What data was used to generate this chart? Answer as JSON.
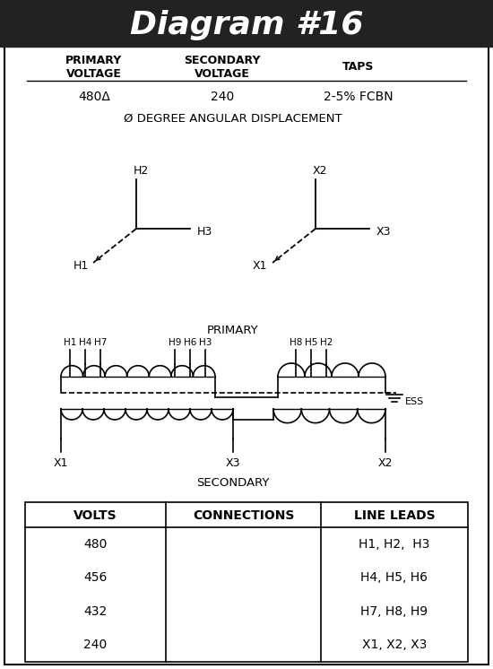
{
  "title": "Diagram #16",
  "bg_header": "#222222",
  "bg_body": "#ffffff",
  "primary_voltage": "480Δ",
  "secondary_voltage": "240",
  "taps": "2-5% FCBN",
  "angular_disp": "Ø DEGREE ANGULAR DISPLACEMENT",
  "table_headers": [
    "VOLTS",
    "CONNECTIONS",
    "LINE LEADS"
  ],
  "table_rows": [
    [
      "480",
      "",
      "H1, H2,  H3"
    ],
    [
      "456",
      "",
      "H4, H5, H6"
    ],
    [
      "432",
      "",
      "H7, H8, H9"
    ],
    [
      "240",
      "",
      "X1, X2, X3"
    ]
  ],
  "primary_label": "PRIMARY",
  "secondary_label": "SECONDARY",
  "ess_label": "ESS"
}
